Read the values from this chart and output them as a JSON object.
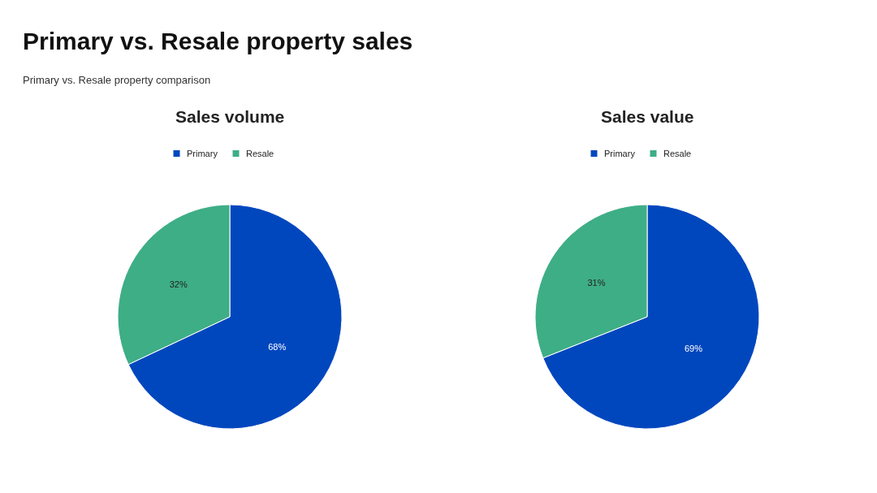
{
  "chart_data": [
    {
      "type": "other",
      "title": "Primary vs. Resale property sales",
      "subtitle": "Primary vs. Resale property comparison"
    },
    {
      "type": "pie",
      "title": "Sales volume",
      "categories": [
        "Primary",
        "Resale"
      ],
      "values": [
        68,
        32
      ],
      "colors": [
        "#0047be",
        "#3eae86"
      ],
      "value_labels": [
        "68%",
        "32%"
      ],
      "legend": "top"
    },
    {
      "type": "pie",
      "title": "Sales value",
      "categories": [
        "Primary",
        "Resale"
      ],
      "values": [
        69,
        31
      ],
      "colors": [
        "#0047be",
        "#3eae86"
      ],
      "value_labels": [
        "69%",
        "31%"
      ],
      "legend": "top"
    }
  ]
}
